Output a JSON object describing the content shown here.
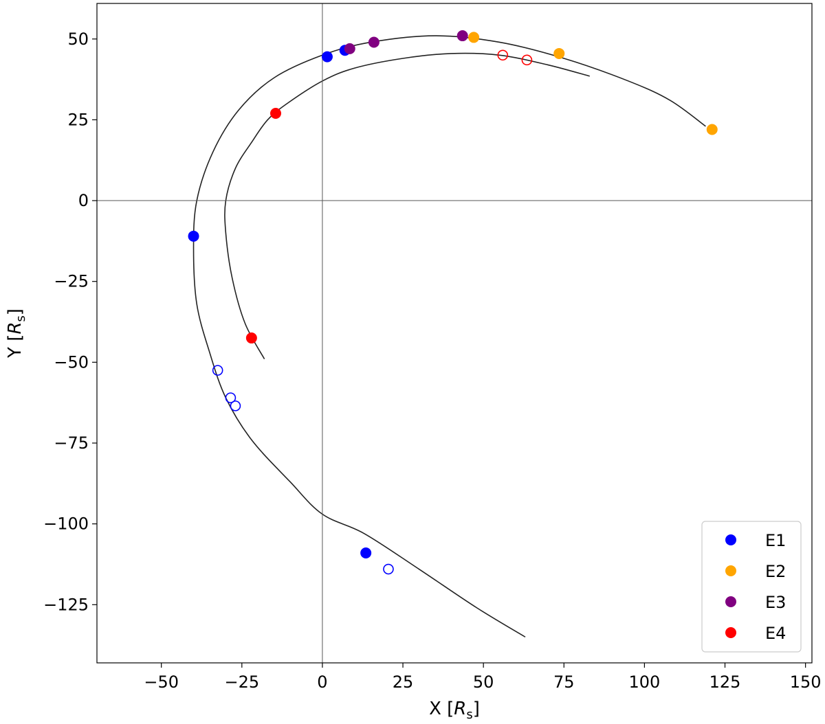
{
  "chart_data": {
    "type": "scatter",
    "title": "",
    "xlabel": {
      "main": "X [",
      "math_symbol": "R",
      "math_sub": "s",
      "close": "]"
    },
    "ylabel": {
      "main": "Y [",
      "math_symbol": "R",
      "math_sub": "s",
      "close": "]"
    },
    "xlim": [
      -70,
      152
    ],
    "ylim": [
      -143,
      61
    ],
    "x_ticks": [
      -50,
      -25,
      0,
      25,
      50,
      75,
      100,
      125,
      150
    ],
    "y_ticks": [
      -125,
      -100,
      -75,
      -50,
      -25,
      0,
      25,
      50
    ],
    "x_tick_labels": [
      "−50",
      "−25",
      "0",
      "25",
      "50",
      "75",
      "100",
      "125",
      "150"
    ],
    "y_tick_labels": [
      "−125",
      "−100",
      "−75",
      "−50",
      "−25",
      "0",
      "25",
      "50"
    ],
    "grid": false,
    "reference_lines": {
      "x": 0,
      "y": 0
    },
    "legend_position": "bottom-right",
    "trajectories": [
      {
        "points": [
          [
            63,
            -135
          ],
          [
            48,
            -126
          ],
          [
            30,
            -114
          ],
          [
            13,
            -103
          ],
          [
            0,
            -97
          ],
          [
            -10,
            -87
          ],
          [
            -22,
            -74
          ],
          [
            -30,
            -61
          ],
          [
            -35,
            -47
          ],
          [
            -39,
            -32
          ],
          [
            -40,
            -15
          ],
          [
            -39,
            0
          ],
          [
            -34,
            15
          ],
          [
            -26,
            28
          ],
          [
            -15,
            38
          ],
          [
            0,
            45
          ],
          [
            15,
            49
          ],
          [
            35,
            51
          ],
          [
            55,
            49
          ],
          [
            75,
            44
          ],
          [
            95,
            37
          ],
          [
            108,
            31
          ],
          [
            119,
            23
          ]
        ]
      },
      {
        "points": [
          [
            -18,
            -49
          ],
          [
            -24,
            -38
          ],
          [
            -28,
            -24
          ],
          [
            -30,
            -10
          ],
          [
            -30,
            0
          ],
          [
            -27,
            10
          ],
          [
            -22,
            18
          ],
          [
            -17,
            25
          ],
          [
            -11,
            30
          ],
          [
            0,
            37
          ],
          [
            10,
            41
          ],
          [
            25,
            44
          ],
          [
            40,
            45.5
          ],
          [
            55,
            45
          ],
          [
            70,
            42
          ],
          [
            83,
            38.5
          ]
        ]
      }
    ],
    "series": [
      {
        "name": "E1",
        "color": "#0000ff",
        "filled": [
          [
            1.5,
            44.5
          ],
          [
            7,
            46.5
          ],
          [
            -40,
            -11
          ],
          [
            13.5,
            -109
          ]
        ],
        "open": [
          [
            -32.5,
            -52.5
          ],
          [
            -28.5,
            -61
          ],
          [
            -27,
            -63.5
          ],
          [
            20.5,
            -114
          ]
        ]
      },
      {
        "name": "E2",
        "color": "#ffa500",
        "filled": [
          [
            47,
            50.5
          ],
          [
            73.5,
            45.5
          ],
          [
            121,
            22
          ]
        ],
        "open": []
      },
      {
        "name": "E3",
        "color": "#800080",
        "filled": [
          [
            8.5,
            47
          ],
          [
            16,
            49
          ],
          [
            43.5,
            51
          ]
        ],
        "open": []
      },
      {
        "name": "E4",
        "color": "#ff0000",
        "filled": [
          [
            -14.5,
            27
          ],
          [
            -22,
            -42.5
          ]
        ],
        "open": [
          [
            56,
            45
          ],
          [
            63.5,
            43.5
          ]
        ]
      }
    ]
  }
}
